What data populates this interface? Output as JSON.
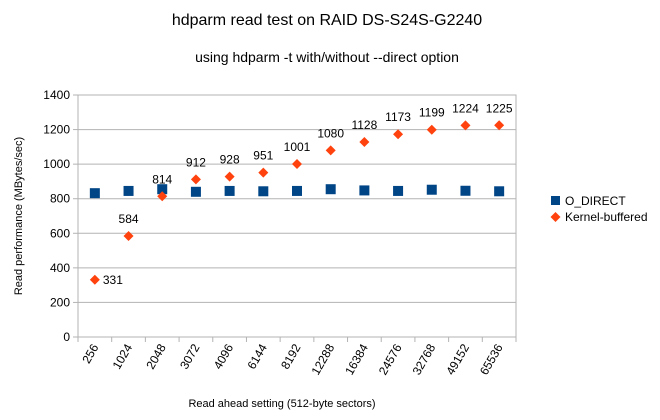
{
  "chart_data": {
    "type": "scatter",
    "title": "hdparm read test on RAID DS-S24S-G2240",
    "subtitle": "using hdparm -t with/without --direct option",
    "xlabel": "Read ahead setting (512-byte sectors)",
    "ylabel": "Read performance (MBytes/sec)",
    "categories": [
      "256",
      "1024",
      "2048",
      "3072",
      "4096",
      "6144",
      "8192",
      "12288",
      "16384",
      "24576",
      "32768",
      "49152",
      "65536"
    ],
    "ylim": [
      0,
      1400
    ],
    "yticks": [
      "0",
      "200",
      "400",
      "600",
      "800",
      "1000",
      "1200",
      "1400"
    ],
    "grid": true,
    "legend_position": "right",
    "series": [
      {
        "name": "O_DIRECT",
        "marker": "square",
        "color": "#004586",
        "values": [
          832,
          845,
          855,
          840,
          845,
          843,
          845,
          855,
          848,
          845,
          852,
          846,
          843
        ],
        "show_labels": false
      },
      {
        "name": "Kernel-buffered",
        "marker": "diamond",
        "color": "#ff420e",
        "values": [
          331,
          584,
          814,
          912,
          928,
          951,
          1001,
          1080,
          1128,
          1173,
          1199,
          1224,
          1225
        ],
        "labels": [
          "331",
          "584",
          "814",
          "912",
          "928",
          "951",
          "1001",
          "1080",
          "1128",
          "1173",
          "1199",
          "1224",
          "1225"
        ],
        "show_labels": true
      }
    ]
  }
}
